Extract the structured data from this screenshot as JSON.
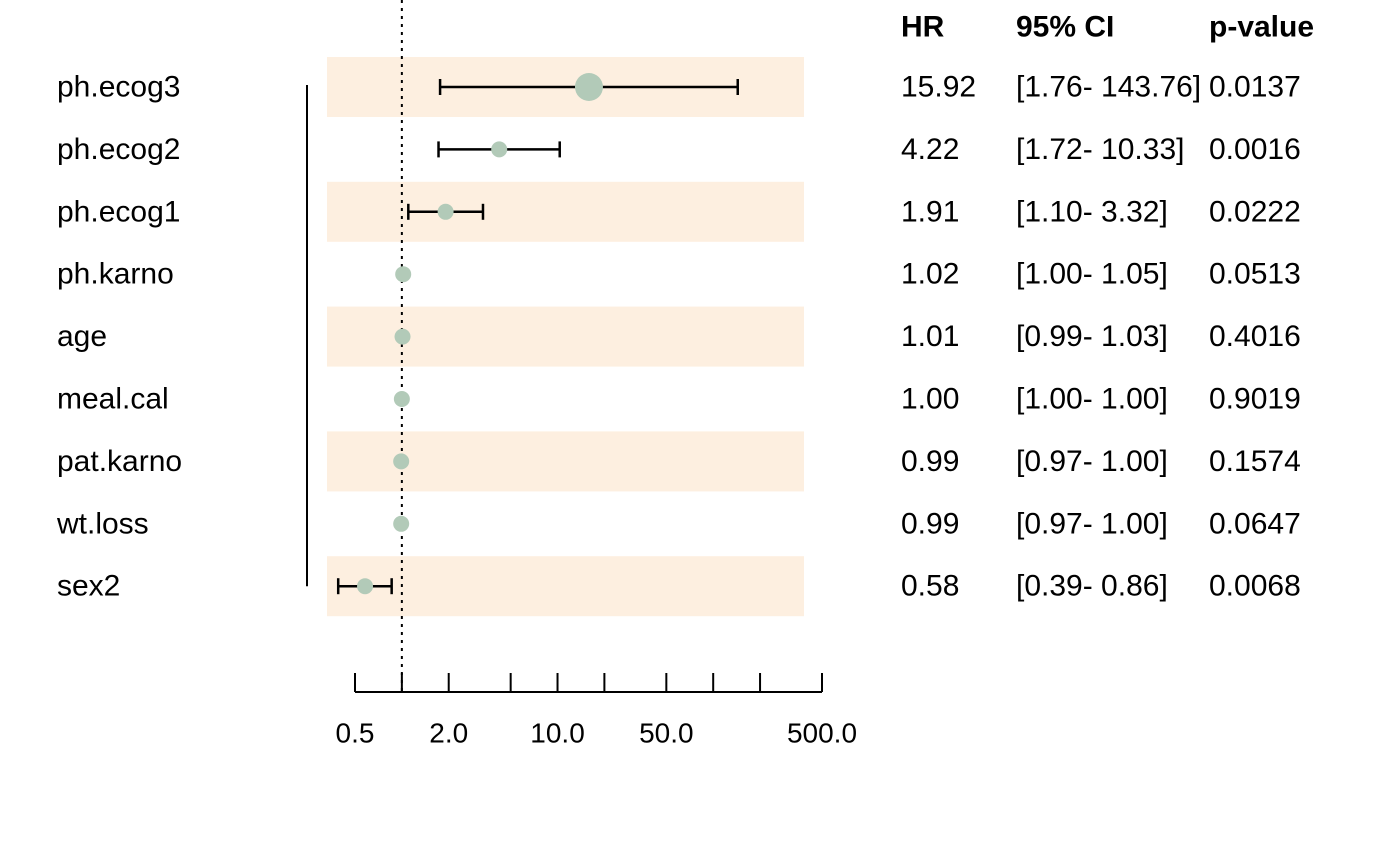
{
  "chart_data": {
    "type": "forest",
    "scale": "log",
    "reference_line": 1,
    "xticks": [
      0.5,
      1,
      2,
      5,
      10,
      20,
      50,
      100,
      200,
      500
    ],
    "xtick_labels": [
      {
        "value": 0.5,
        "label": "0.5"
      },
      {
        "value": 2,
        "label": "2.0"
      },
      {
        "value": 10,
        "label": "10.0"
      },
      {
        "value": 50,
        "label": "50.0"
      },
      {
        "value": 500,
        "label": "500.0"
      }
    ],
    "xlim": [
      0.5,
      500
    ],
    "columns": [
      "HR",
      "95% CI",
      "p-value"
    ],
    "rows": [
      {
        "name": "ph.ecog3",
        "hr": 15.92,
        "lo": 1.76,
        "hi": 143.76,
        "hr_text": "15.92",
        "ci_text": "[1.76- 143.76]",
        "p_text": "0.0137",
        "shaded": true
      },
      {
        "name": "ph.ecog2",
        "hr": 4.22,
        "lo": 1.72,
        "hi": 10.33,
        "hr_text": "4.22",
        "ci_text": "[1.72- 10.33]",
        "p_text": "0.0016",
        "shaded": false
      },
      {
        "name": "ph.ecog1",
        "hr": 1.91,
        "lo": 1.1,
        "hi": 3.32,
        "hr_text": "1.91",
        "ci_text": "[1.10- 3.32]",
        "p_text": "0.0222",
        "shaded": true
      },
      {
        "name": "ph.karno",
        "hr": 1.02,
        "lo": 1.0,
        "hi": 1.05,
        "hr_text": "1.02",
        "ci_text": "[1.00- 1.05]",
        "p_text": "0.0513",
        "shaded": false
      },
      {
        "name": "age",
        "hr": 1.01,
        "lo": 0.99,
        "hi": 1.03,
        "hr_text": "1.01",
        "ci_text": "[0.99- 1.03]",
        "p_text": "0.4016",
        "shaded": true
      },
      {
        "name": "meal.cal",
        "hr": 1.0,
        "lo": 1.0,
        "hi": 1.0,
        "hr_text": "1.00",
        "ci_text": "[1.00- 1.00]",
        "p_text": "0.9019",
        "shaded": false
      },
      {
        "name": "pat.karno",
        "hr": 0.99,
        "lo": 0.97,
        "hi": 1.0,
        "hr_text": "0.99",
        "ci_text": "[0.97- 1.00]",
        "p_text": "0.1574",
        "shaded": true
      },
      {
        "name": "wt.loss",
        "hr": 0.99,
        "lo": 0.97,
        "hi": 1.0,
        "hr_text": "0.99",
        "ci_text": "[0.97- 1.00]",
        "p_text": "0.0647",
        "shaded": false
      },
      {
        "name": "sex2",
        "hr": 0.58,
        "lo": 0.39,
        "hi": 0.86,
        "hr_text": "0.58",
        "ci_text": "[0.39- 0.86]",
        "p_text": "0.0068",
        "shaded": true
      }
    ],
    "colors": {
      "band": "#fdefe0",
      "point": "#b2cab8",
      "line": "#000000"
    }
  }
}
